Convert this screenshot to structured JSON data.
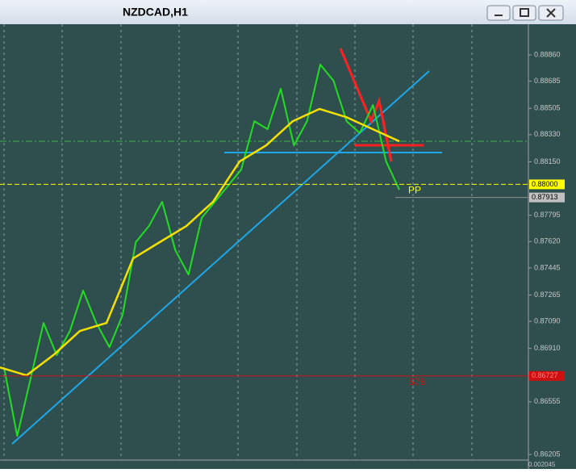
{
  "window": {
    "title": "NZDCAD,H1"
  },
  "chart": {
    "ylim": [
      0.86168,
      0.89064
    ],
    "yticks": [
      {
        "value": 0.8886,
        "label": "0.88860"
      },
      {
        "value": 0.88685,
        "label": "0.88685"
      },
      {
        "value": 0.88505,
        "label": "0.88505"
      },
      {
        "value": 0.8833,
        "label": "0.88330"
      },
      {
        "value": 0.8815,
        "label": "0.88150"
      },
      {
        "value": 0.87795,
        "label": "0.87795"
      },
      {
        "value": 0.8762,
        "label": "0.87620"
      },
      {
        "value": 0.87445,
        "label": "0.87445"
      },
      {
        "value": 0.87265,
        "label": "0.87265"
      },
      {
        "value": 0.8709,
        "label": "0.87090"
      },
      {
        "value": 0.8691,
        "label": "0.86910"
      },
      {
        "value": 0.86555,
        "label": "0.86555"
      },
      {
        "value": 0.86205,
        "label": "0.86205"
      }
    ],
    "close": [
      0.86784,
      0.86328,
      0.86704,
      0.87079,
      0.86865,
      0.87026,
      0.87294,
      0.87079,
      0.86918,
      0.87133,
      0.87616,
      0.87723,
      0.87884,
      0.87562,
      0.87401,
      0.87777,
      0.87884,
      0.87991,
      0.88098,
      0.8842,
      0.88367,
      0.88635,
      0.88259,
      0.8842,
      0.88796,
      0.88689,
      0.8842,
      0.8834,
      0.88528,
      0.88152,
      0.87964
    ],
    "ma": [
      0.86784,
      0.86731,
      0.86865,
      0.87026,
      0.87079,
      0.87508,
      0.87616,
      0.87723,
      0.87884,
      0.88152,
      0.88259,
      0.8842,
      0.88501,
      0.88447,
      0.88367,
      0.88286
    ],
    "levels": [
      {
        "name": "PP",
        "value": 0.88,
        "label": "0.88000",
        "color": "#ffff00",
        "tag_bg": "#ffff00",
        "tag_fg": "#000000"
      },
      {
        "name": "S78",
        "value": 0.86727,
        "label": "0.86727",
        "color": "#d01010",
        "tag_bg": "#d01010",
        "tag_fg": "#ff8080"
      }
    ],
    "bid": {
      "value": 0.87913,
      "label": "0.87913"
    },
    "indicator_label": "0.002045"
  }
}
